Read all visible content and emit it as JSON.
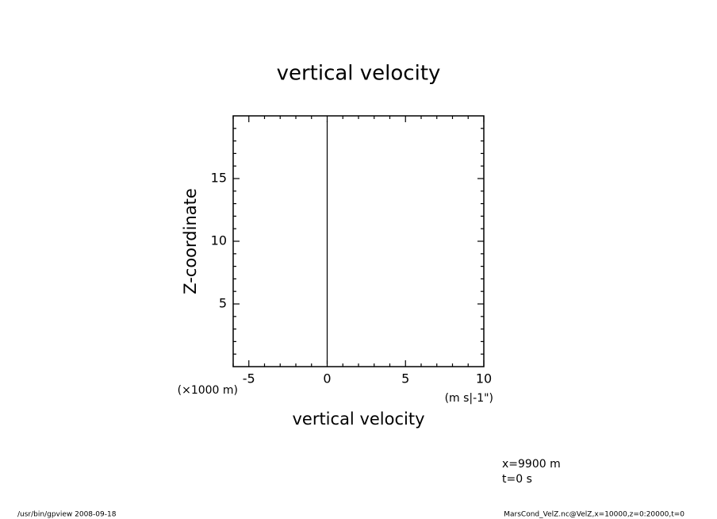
{
  "chart_data": {
    "type": "line",
    "title": "vertical velocity",
    "x_label": "vertical velocity",
    "y_label": "Z-coordinate",
    "x_unit": "(m s|-1\")",
    "y_unit": "(×1000 m)",
    "x": [
      0,
      0
    ],
    "y": [
      0.2,
      19.6
    ],
    "color": "#000000",
    "xlim": [
      -6,
      10
    ],
    "ylim": [
      0,
      20
    ],
    "xticks": [
      -5,
      0,
      5,
      10
    ],
    "yticks": [
      5,
      10,
      15
    ],
    "xminorticks": [
      -6,
      -4,
      -3,
      -2,
      -1,
      1,
      2,
      3,
      4,
      6,
      7,
      8,
      9
    ],
    "yminorticks": [
      1,
      2,
      3,
      4,
      6,
      7,
      8,
      9,
      11,
      12,
      13,
      14,
      16,
      17,
      18,
      19
    ],
    "annotations": [
      "x=9900 m",
      "t=0 s"
    ],
    "footer_left": "/usr/bin/gpview  2008-09-18",
    "footer_right": "MarsCond_VelZ.nc@VelZ,x=10000,z=0:20000,t=0"
  }
}
